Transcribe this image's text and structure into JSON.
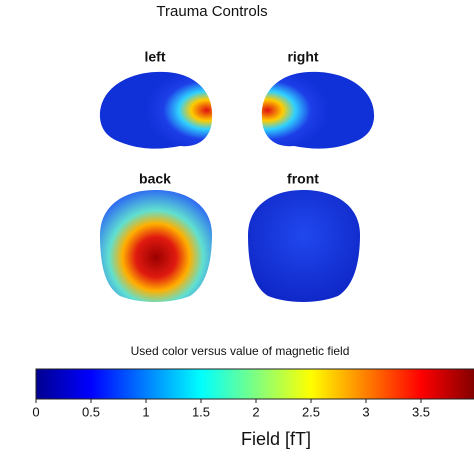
{
  "title": "Trauma Controls",
  "views": [
    "left",
    "right",
    "back",
    "front"
  ],
  "colorbar": {
    "title": "Used color versus value of magnetic field",
    "xlim": [
      0,
      4
    ],
    "xticks": [
      0,
      0.5,
      1,
      1.5,
      2,
      2.5,
      3,
      3.5
    ],
    "label": "Field [fT]"
  }
}
